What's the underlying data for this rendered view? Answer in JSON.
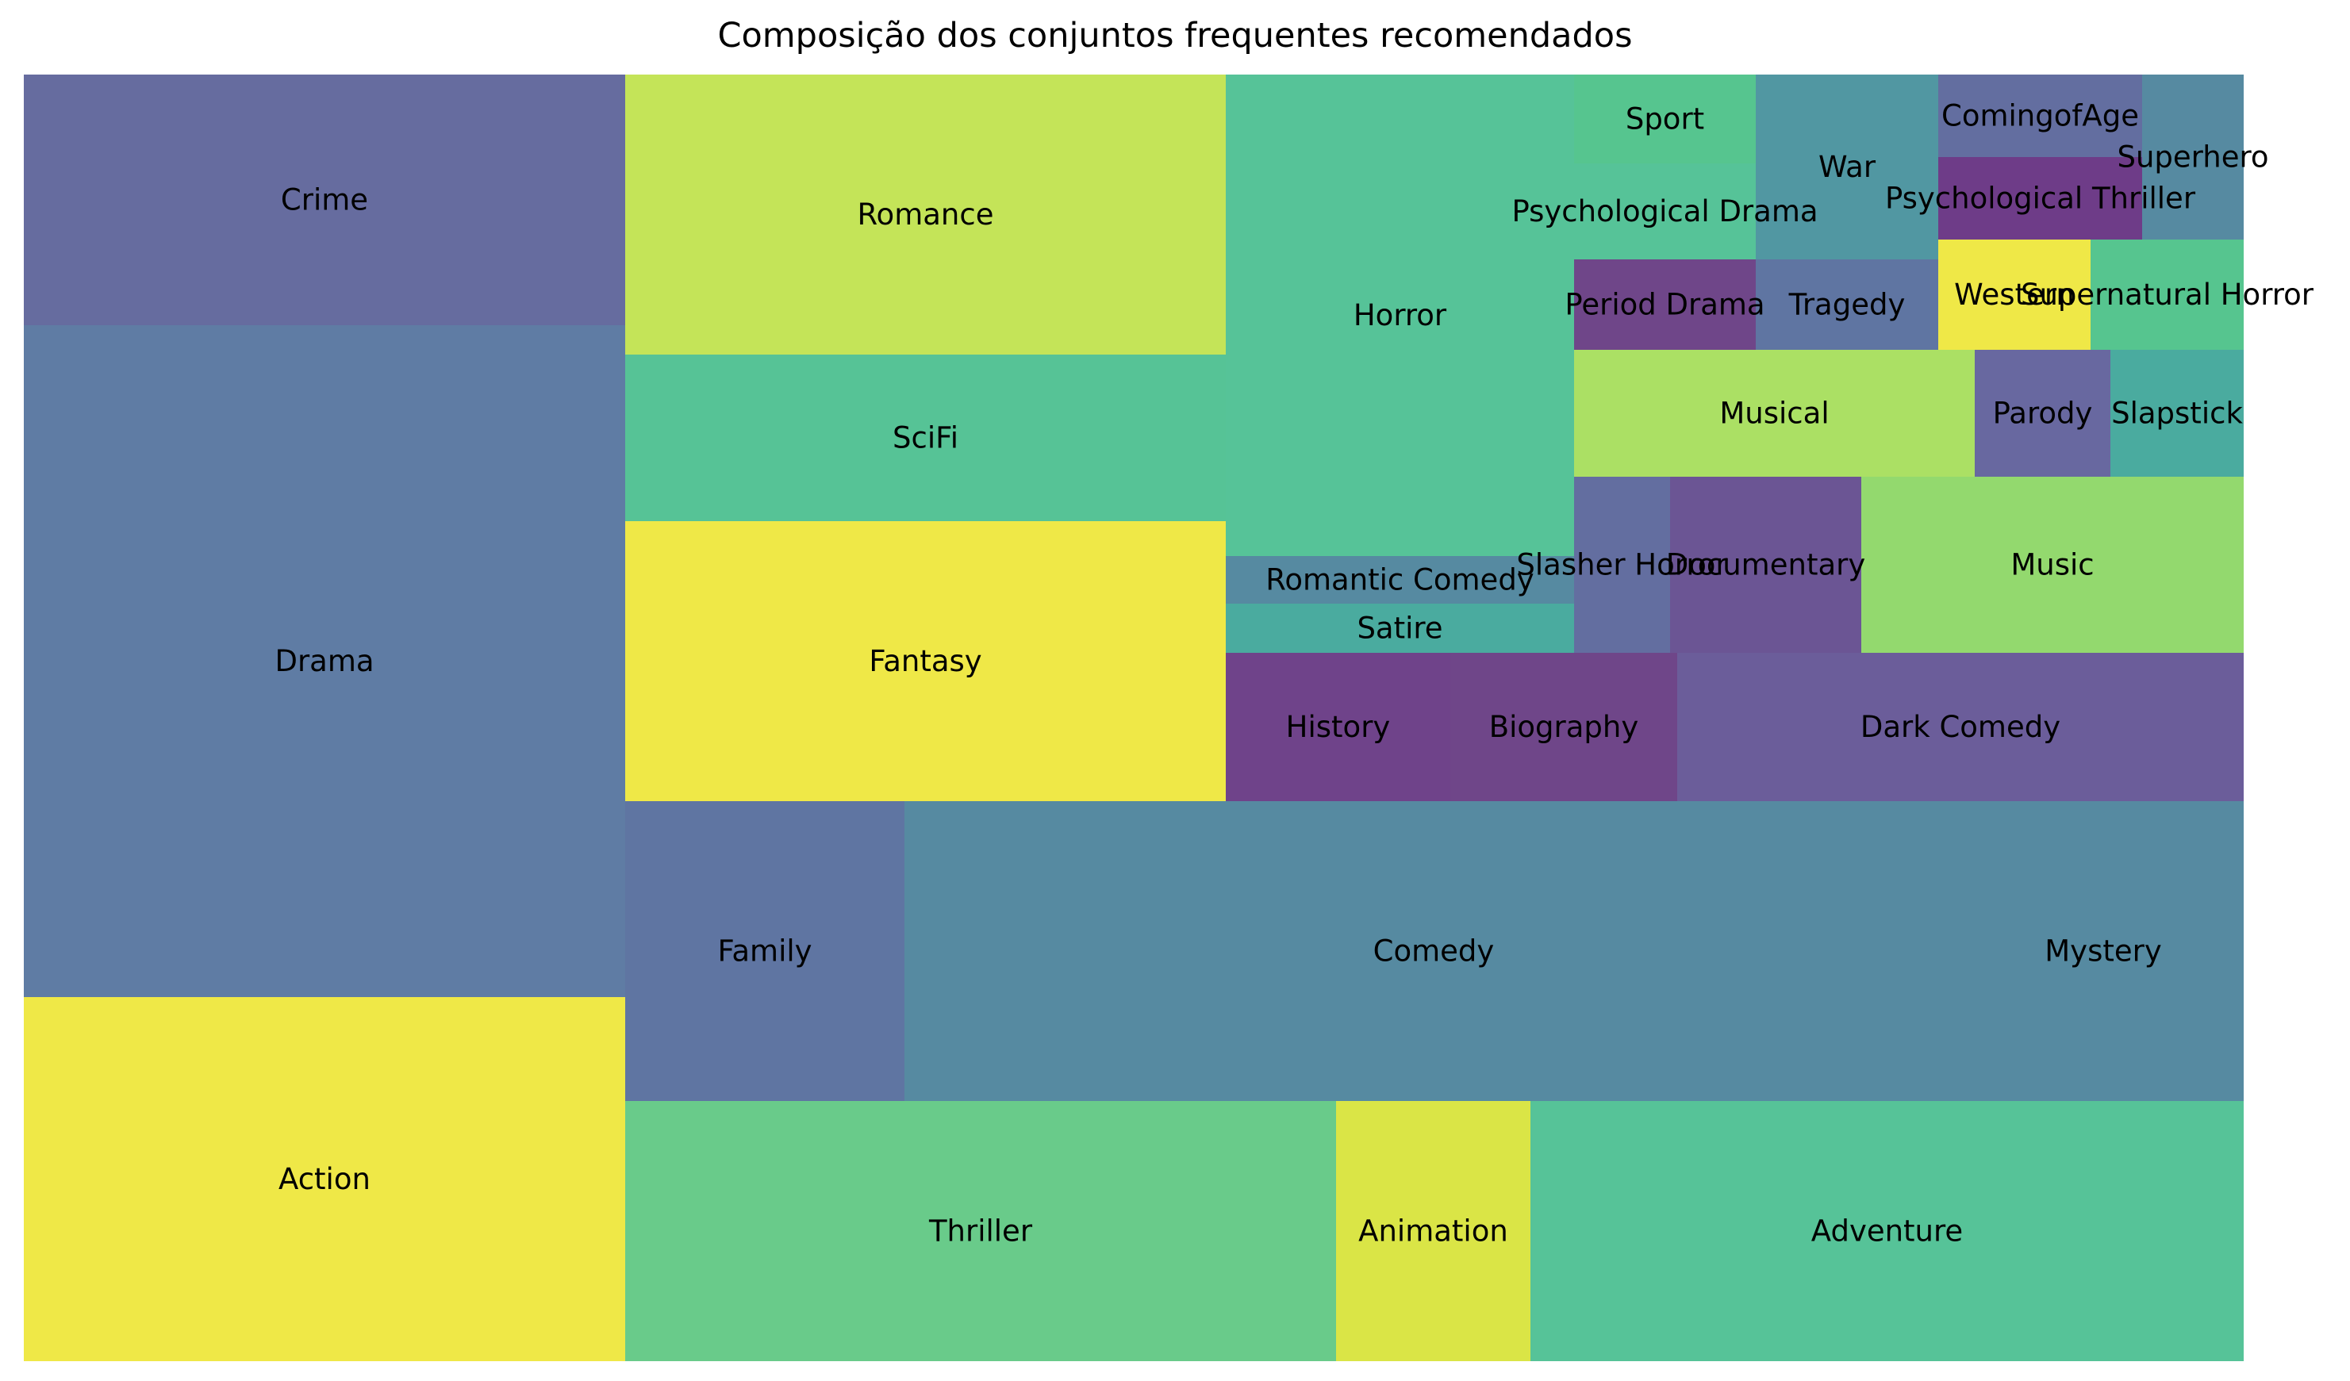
{
  "chart_data": {
    "type": "treemap",
    "title": "Composição dos conjuntos frequentes recomendados",
    "cells": [
      {
        "label": "Crime",
        "color": "#666c9f"
      },
      {
        "label": "Drama",
        "color": "#5f7ca4"
      },
      {
        "label": "Action",
        "color": "#efe847"
      },
      {
        "label": "Romance",
        "color": "#c4e458"
      },
      {
        "label": "SciFi",
        "color": "#56c396"
      },
      {
        "label": "Fantasy",
        "color": "#efe847"
      },
      {
        "label": "Family",
        "color": "#5f75a2"
      },
      {
        "label": "Comedy",
        "color": "#568aa1"
      },
      {
        "label": "Mystery",
        "color": "#568aa1"
      },
      {
        "label": "Thriller",
        "color": "#69cb8a"
      },
      {
        "label": "Animation",
        "color": "#dae546"
      },
      {
        "label": "Adventure",
        "color": "#56c398"
      },
      {
        "label": "Horror",
        "color": "#56c398"
      },
      {
        "label": "Romantic Comedy",
        "color": "#568aa1"
      },
      {
        "label": "Satire",
        "color": "#4aab9f"
      },
      {
        "label": "History",
        "color": "#6f438a"
      },
      {
        "label": "Biography",
        "color": "#6f4689"
      },
      {
        "label": "Sport",
        "color": "#56c58f"
      },
      {
        "label": "Psychological Drama",
        "color": "#56c398"
      },
      {
        "label": "War",
        "color": "#5197a2"
      },
      {
        "label": "ComingofAge",
        "color": "#636ea0"
      },
      {
        "label": "Superhero",
        "color": "#568aa1"
      },
      {
        "label": "Psychological Thriller",
        "color": "#6e3c88"
      },
      {
        "label": "Period Drama",
        "color": "#6f4689"
      },
      {
        "label": "Tragedy",
        "color": "#5f75a2"
      },
      {
        "label": "Western",
        "color": "#efe847"
      },
      {
        "label": "Supernatural Horror",
        "color": "#56c58f"
      },
      {
        "label": "Musical",
        "color": "#abe064"
      },
      {
        "label": "Parody",
        "color": "#6868a0"
      },
      {
        "label": "Slapstick",
        "color": "#4aab9f"
      },
      {
        "label": "Slasher Horror",
        "color": "#636ea0"
      },
      {
        "label": "Documentary",
        "color": "#6b5594"
      },
      {
        "label": "Music",
        "color": "#93d96e"
      },
      {
        "label": "Dark Comedy",
        "color": "#6b5d9a"
      }
    ]
  }
}
